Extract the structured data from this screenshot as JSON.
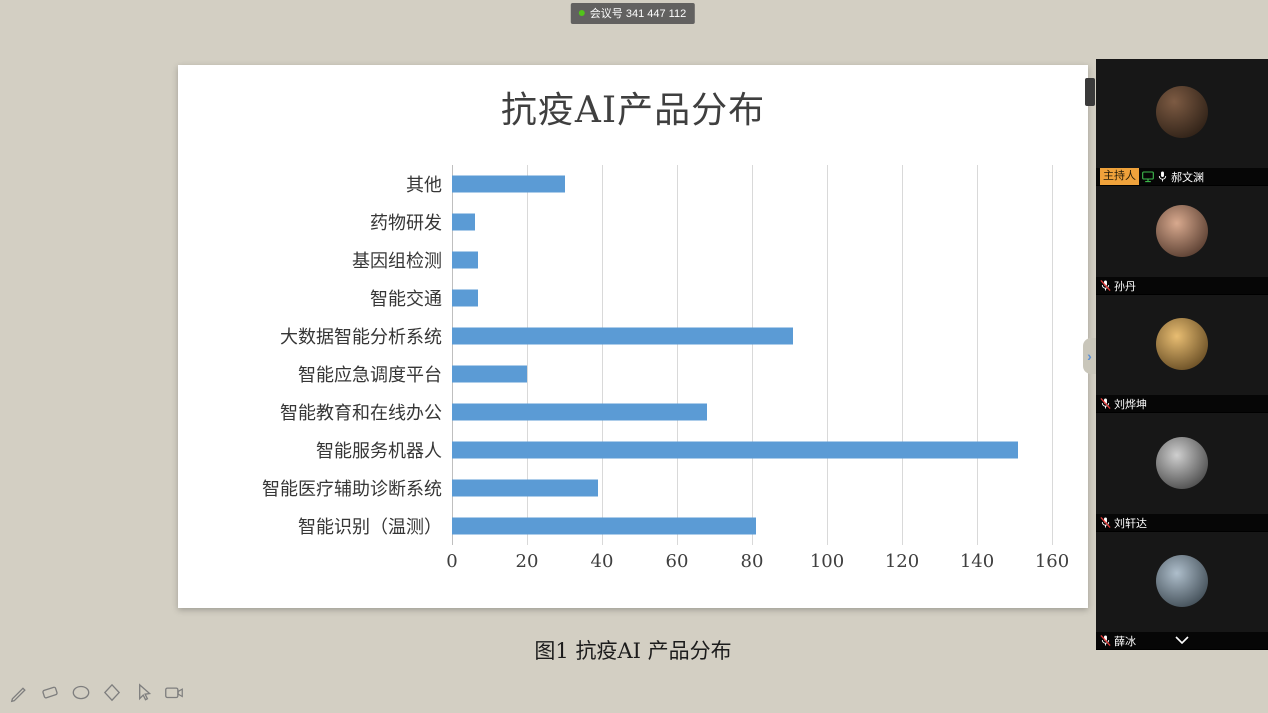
{
  "meeting": {
    "badge_label": "会议号 341 447 112"
  },
  "colors": {
    "bar_blue": "#5b9bd5",
    "host_badge_bg": "#efa23b",
    "share_green": "#3fbf4f",
    "muted_red": "#e23c3c",
    "badge_dot_green": "#52c41a"
  },
  "chart_data": {
    "type": "bar",
    "orientation": "horizontal",
    "title": "抗疫AI产品分布",
    "categories": [
      "其他",
      "药物研发",
      "基因组检测",
      "智能交通",
      "大数据智能分析系统",
      "智能应急调度平台",
      "智能教育和在线办公",
      "智能服务机器人",
      "智能医疗辅助诊断系统",
      "智能识别（温测）"
    ],
    "values": [
      30,
      6,
      7,
      7,
      91,
      20,
      68,
      151,
      39,
      81
    ],
    "xlim": [
      0,
      160
    ],
    "xticks": [
      0,
      20,
      40,
      60,
      80,
      100,
      120,
      140,
      160
    ],
    "grid": true,
    "legend": false,
    "bar_color": "#5b9bd5"
  },
  "slide": {
    "caption": "图1 抗疫AI 产品分布"
  },
  "sidebar": {
    "participants": [
      {
        "name": "郝文渊",
        "host_badge": "主持人",
        "sharing": true,
        "mic": "on"
      },
      {
        "name": "孙丹",
        "mic": "muted"
      },
      {
        "name": "刘烨坤",
        "mic": "muted"
      },
      {
        "name": "刘轩达",
        "mic": "muted"
      },
      {
        "name": "薛冰",
        "mic": "muted",
        "collapse": true
      }
    ]
  },
  "toolbar": {
    "tools": [
      "pen",
      "eraser",
      "ellipse",
      "diamond",
      "select-arrow",
      "screenshot"
    ]
  }
}
